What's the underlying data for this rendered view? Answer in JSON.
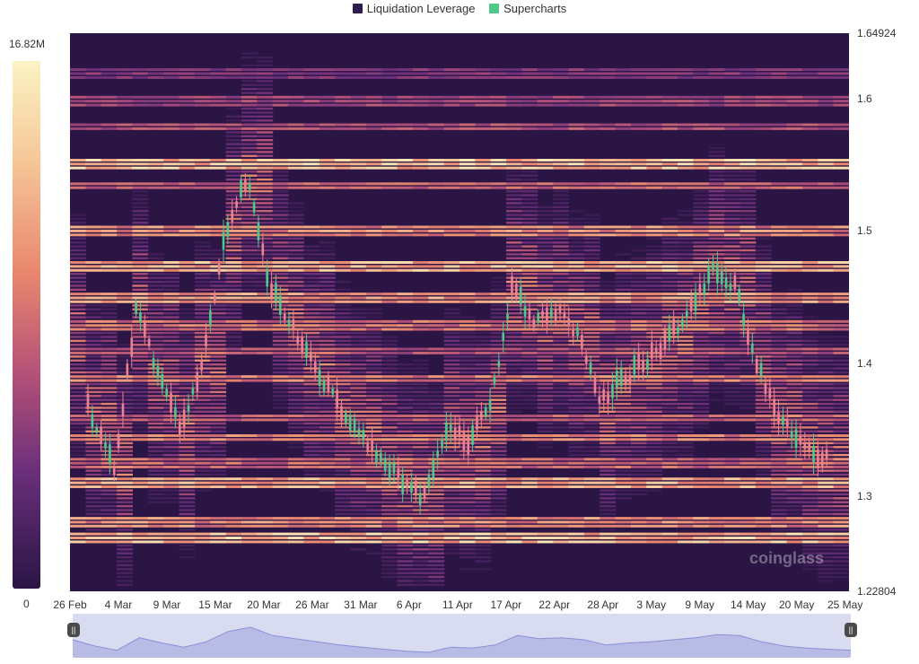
{
  "legend": [
    {
      "label": "Liquidation Leverage",
      "color": "#2d1b4e"
    },
    {
      "label": "Supercharts",
      "color": "#4ec98a"
    }
  ],
  "colorbar": {
    "max_label": "16.82M",
    "min_label": "0"
  },
  "watermark": "coinglass",
  "chart_data": {
    "type": "heatmap",
    "title": "",
    "xlabel": "",
    "ylabel": "",
    "x_ticks": [
      "26 Feb",
      "4 Mar",
      "9 Mar",
      "15 Mar",
      "20 Mar",
      "26 Mar",
      "31 Mar",
      "6 Apr",
      "11 Apr",
      "17 Apr",
      "22 Apr",
      "28 Apr",
      "3 May",
      "9 May",
      "14 May",
      "20 May",
      "25 May"
    ],
    "y_ticks": [
      "1.64924",
      "1.6",
      "1.5",
      "1.4",
      "1.3",
      "1.22804"
    ],
    "ylim": [
      1.22804,
      1.64924
    ],
    "colorbar_range": [
      0,
      16820000
    ],
    "price_series": [
      {
        "date": "26 Feb",
        "price": 1.42
      },
      {
        "date": "28 Feb",
        "price": 1.36
      },
      {
        "date": "1 Mar",
        "price": 1.32
      },
      {
        "date": "4 Mar",
        "price": 1.44
      },
      {
        "date": "6 Mar",
        "price": 1.39
      },
      {
        "date": "9 Mar",
        "price": 1.35
      },
      {
        "date": "12 Mar",
        "price": 1.4
      },
      {
        "date": "15 Mar",
        "price": 1.5
      },
      {
        "date": "16 Mar",
        "price": 1.54
      },
      {
        "date": "18 Mar",
        "price": 1.46
      },
      {
        "date": "20 Mar",
        "price": 1.43
      },
      {
        "date": "23 Mar",
        "price": 1.4
      },
      {
        "date": "26 Mar",
        "price": 1.37
      },
      {
        "date": "28 Mar",
        "price": 1.35
      },
      {
        "date": "31 Mar",
        "price": 1.33
      },
      {
        "date": "3 Apr",
        "price": 1.31
      },
      {
        "date": "6 Apr",
        "price": 1.3
      },
      {
        "date": "8 Apr",
        "price": 1.35
      },
      {
        "date": "11 Apr",
        "price": 1.34
      },
      {
        "date": "14 Apr",
        "price": 1.37
      },
      {
        "date": "17 Apr",
        "price": 1.46
      },
      {
        "date": "20 Apr",
        "price": 1.43
      },
      {
        "date": "22 Apr",
        "price": 1.44
      },
      {
        "date": "25 Apr",
        "price": 1.42
      },
      {
        "date": "28 Apr",
        "price": 1.37
      },
      {
        "date": "1 May",
        "price": 1.39
      },
      {
        "date": "3 May",
        "price": 1.4
      },
      {
        "date": "6 May",
        "price": 1.42
      },
      {
        "date": "9 May",
        "price": 1.44
      },
      {
        "date": "12 May",
        "price": 1.47
      },
      {
        "date": "14 May",
        "price": 1.46
      },
      {
        "date": "17 May",
        "price": 1.4
      },
      {
        "date": "20 May",
        "price": 1.36
      },
      {
        "date": "23 May",
        "price": 1.34
      },
      {
        "date": "25 May",
        "price": 1.33
      },
      {
        "date": "27 May",
        "price": 1.32
      }
    ],
    "liquidation_levels": [
      {
        "price": 1.27,
        "intensity": 0.95
      },
      {
        "price": 1.282,
        "intensity": 0.75
      },
      {
        "price": 1.31,
        "intensity": 0.85
      },
      {
        "price": 1.325,
        "intensity": 0.6
      },
      {
        "price": 1.345,
        "intensity": 0.7
      },
      {
        "price": 1.36,
        "intensity": 0.55
      },
      {
        "price": 1.39,
        "intensity": 0.7
      },
      {
        "price": 1.41,
        "intensity": 0.5
      },
      {
        "price": 1.43,
        "intensity": 0.65
      },
      {
        "price": 1.45,
        "intensity": 0.8
      },
      {
        "price": 1.475,
        "intensity": 0.9
      },
      {
        "price": 1.5,
        "intensity": 0.75
      },
      {
        "price": 1.535,
        "intensity": 0.6
      },
      {
        "price": 1.552,
        "intensity": 0.95
      },
      {
        "price": 1.58,
        "intensity": 0.5
      },
      {
        "price": 1.6,
        "intensity": 0.45
      },
      {
        "price": 1.62,
        "intensity": 0.35
      }
    ]
  }
}
